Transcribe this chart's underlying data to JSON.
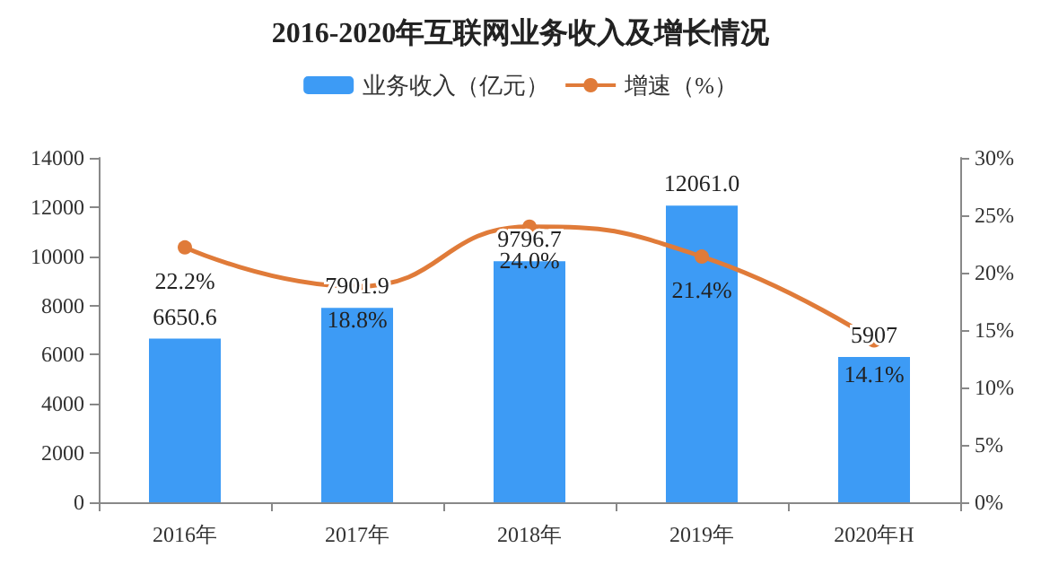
{
  "chart_data": {
    "type": "bar",
    "title": "2016-2020年互联网业务收入及增长情况",
    "categories": [
      "2016年",
      "2017年",
      "2018年",
      "2019年",
      "2020年H"
    ],
    "series": [
      {
        "name": "业务收入（亿元）",
        "color": "#3d9bf5",
        "values": [
          6650.6,
          7901.9,
          9796.7,
          12061.0,
          5907
        ],
        "value_labels": [
          "6650.6",
          "7901.9",
          "9796.7",
          "12061.0",
          "5907"
        ]
      },
      {
        "name": "增速（%）",
        "type": "line",
        "axis": "y2",
        "color": "#e07b39",
        "values": [
          22.2,
          18.8,
          24.0,
          21.4,
          14.1
        ],
        "value_labels": [
          "22.2%",
          "18.8%",
          "24.0%",
          "21.4%",
          "14.1%"
        ]
      }
    ],
    "ylim": [
      0,
      14000
    ],
    "yticks": [
      0,
      2000,
      4000,
      6000,
      8000,
      10000,
      12000,
      14000
    ],
    "y2lim": [
      0,
      30
    ],
    "y2ticks": [
      {
        "value": 0,
        "label": "0%"
      },
      {
        "value": 5,
        "label": "5%"
      },
      {
        "value": 10,
        "label": "10%"
      },
      {
        "value": 15,
        "label": "15%"
      },
      {
        "value": 20,
        "label": "20%"
      },
      {
        "value": 25,
        "label": "25%"
      },
      {
        "value": 30,
        "label": "30%"
      }
    ],
    "legend": "top",
    "grid": false,
    "marker": "circle"
  }
}
